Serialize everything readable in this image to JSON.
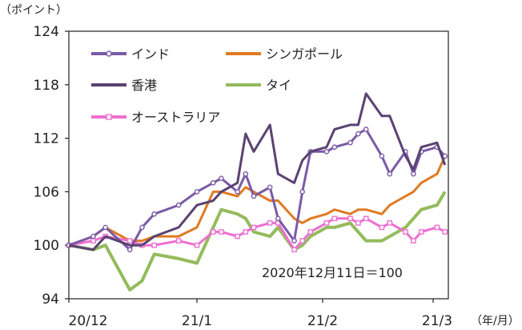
{
  "chart_data": {
    "type": "line",
    "y_unit_label": "（ポイント）",
    "x_unit_label": "（年/月）",
    "annotation": "2020年12月11日＝100",
    "ylim": [
      94,
      124
    ],
    "y_ticks": [
      "124",
      "118",
      "112",
      "106",
      "100",
      "94"
    ],
    "x_ticks": [
      "20/12",
      "21/1",
      "21/2",
      "21/3"
    ],
    "grid": false,
    "legend_position": "top-left",
    "x": [
      "2020-12-11",
      "2020-12-15",
      "2020-12-17",
      "2020-12-21",
      "2020-12-23",
      "2020-12-25",
      "2020-12-29",
      "2021-01-01",
      "2021-01-05",
      "2021-01-07",
      "2021-01-11",
      "2021-01-13",
      "2021-01-15",
      "2021-01-19",
      "2021-01-21",
      "2021-01-25",
      "2021-01-27",
      "2021-01-29",
      "2021-02-02",
      "2021-02-04",
      "2021-02-08",
      "2021-02-10",
      "2021-02-12",
      "2021-02-16",
      "2021-02-18",
      "2021-02-22",
      "2021-02-24",
      "2021-02-26",
      "2021-03-02",
      "2021-03-04"
    ],
    "series": [
      {
        "name": "インド",
        "color": "#7a5aa6",
        "marker": "circle",
        "values": [
          100,
          101,
          102,
          99.5,
          102,
          103.5,
          104.5,
          106,
          107,
          107.5,
          106,
          108,
          105.5,
          106.5,
          103,
          100.5,
          106,
          110.5,
          110.5,
          111,
          111.5,
          112.5,
          113,
          110,
          108,
          110.5,
          108,
          110.5,
          111,
          110
        ]
      },
      {
        "name": "シンガポール",
        "color": "#e07a22",
        "marker": "none",
        "values": [
          100,
          101,
          102,
          100.5,
          100.5,
          101,
          101,
          102,
          106,
          106,
          105.5,
          106.5,
          106,
          105,
          105,
          103,
          102.5,
          103,
          103.5,
          104,
          103.5,
          104,
          104,
          103.5,
          104.5,
          105.5,
          106,
          107,
          108,
          110
        ]
      },
      {
        "name": "香港",
        "color": "#5a4272",
        "marker": "none",
        "values": [
          100,
          99.5,
          101,
          100,
          100,
          101,
          102,
          104.5,
          105,
          106,
          107,
          112.5,
          110.5,
          113.5,
          108,
          107,
          109.5,
          110.5,
          111,
          113,
          113.5,
          113.5,
          117,
          114.5,
          114.5,
          110,
          108.5,
          111,
          111.5,
          109
        ]
      },
      {
        "name": "タイ",
        "color": "#94bb5c",
        "marker": "none",
        "values": [
          100,
          99.5,
          100,
          95,
          96,
          99,
          98.5,
          98,
          102,
          104,
          103.5,
          103,
          101.5,
          101,
          102,
          99.5,
          100,
          101,
          102,
          102,
          102.5,
          101.5,
          100.5,
          100.5,
          101,
          102,
          103,
          104,
          104.5,
          106
        ]
      },
      {
        "name": "オーストラリア",
        "color": "#ee6fd0",
        "marker": "square",
        "values": [
          100,
          100.5,
          101,
          100.5,
          100,
          100,
          100.5,
          100,
          101.5,
          101.5,
          101,
          101.5,
          102,
          102.5,
          102.5,
          99.5,
          100.5,
          101.5,
          102.5,
          103,
          103,
          102.5,
          103,
          102,
          102.5,
          101.5,
          100.5,
          101.5,
          102,
          101.5
        ]
      }
    ]
  }
}
